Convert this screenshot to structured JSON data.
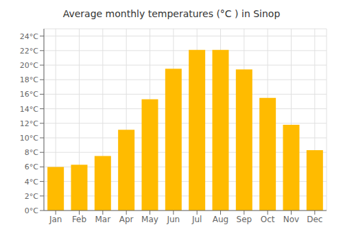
{
  "chart_data": {
    "type": "bar",
    "title": "Average monthly temperatures (°C ) in Sinop",
    "categories": [
      "Jan",
      "Feb",
      "Mar",
      "Apr",
      "May",
      "Jun",
      "Jul",
      "Aug",
      "Sep",
      "Oct",
      "Nov",
      "Dec"
    ],
    "values": [
      6.0,
      6.3,
      7.5,
      11.1,
      15.3,
      19.5,
      22.1,
      22.1,
      19.4,
      15.5,
      11.8,
      8.3
    ],
    "color": "#FFBB00",
    "ylim": [
      0,
      25
    ],
    "yticks": [
      {
        "value": 0,
        "label": "0°C"
      },
      {
        "value": 2,
        "label": "2°C"
      },
      {
        "value": 4,
        "label": "4°C"
      },
      {
        "value": 6,
        "label": "6°C"
      },
      {
        "value": 8,
        "label": "8°C"
      },
      {
        "value": 10,
        "label": "10°C"
      },
      {
        "value": 12,
        "label": "12°C"
      },
      {
        "value": 14,
        "label": "14°C"
      },
      {
        "value": 16,
        "label": "16°C"
      },
      {
        "value": 18,
        "label": "18°C"
      },
      {
        "value": 20,
        "label": "20°C"
      },
      {
        "value": 22,
        "label": "22°C"
      },
      {
        "value": 24,
        "label": "24°C"
      }
    ],
    "grid": true
  }
}
